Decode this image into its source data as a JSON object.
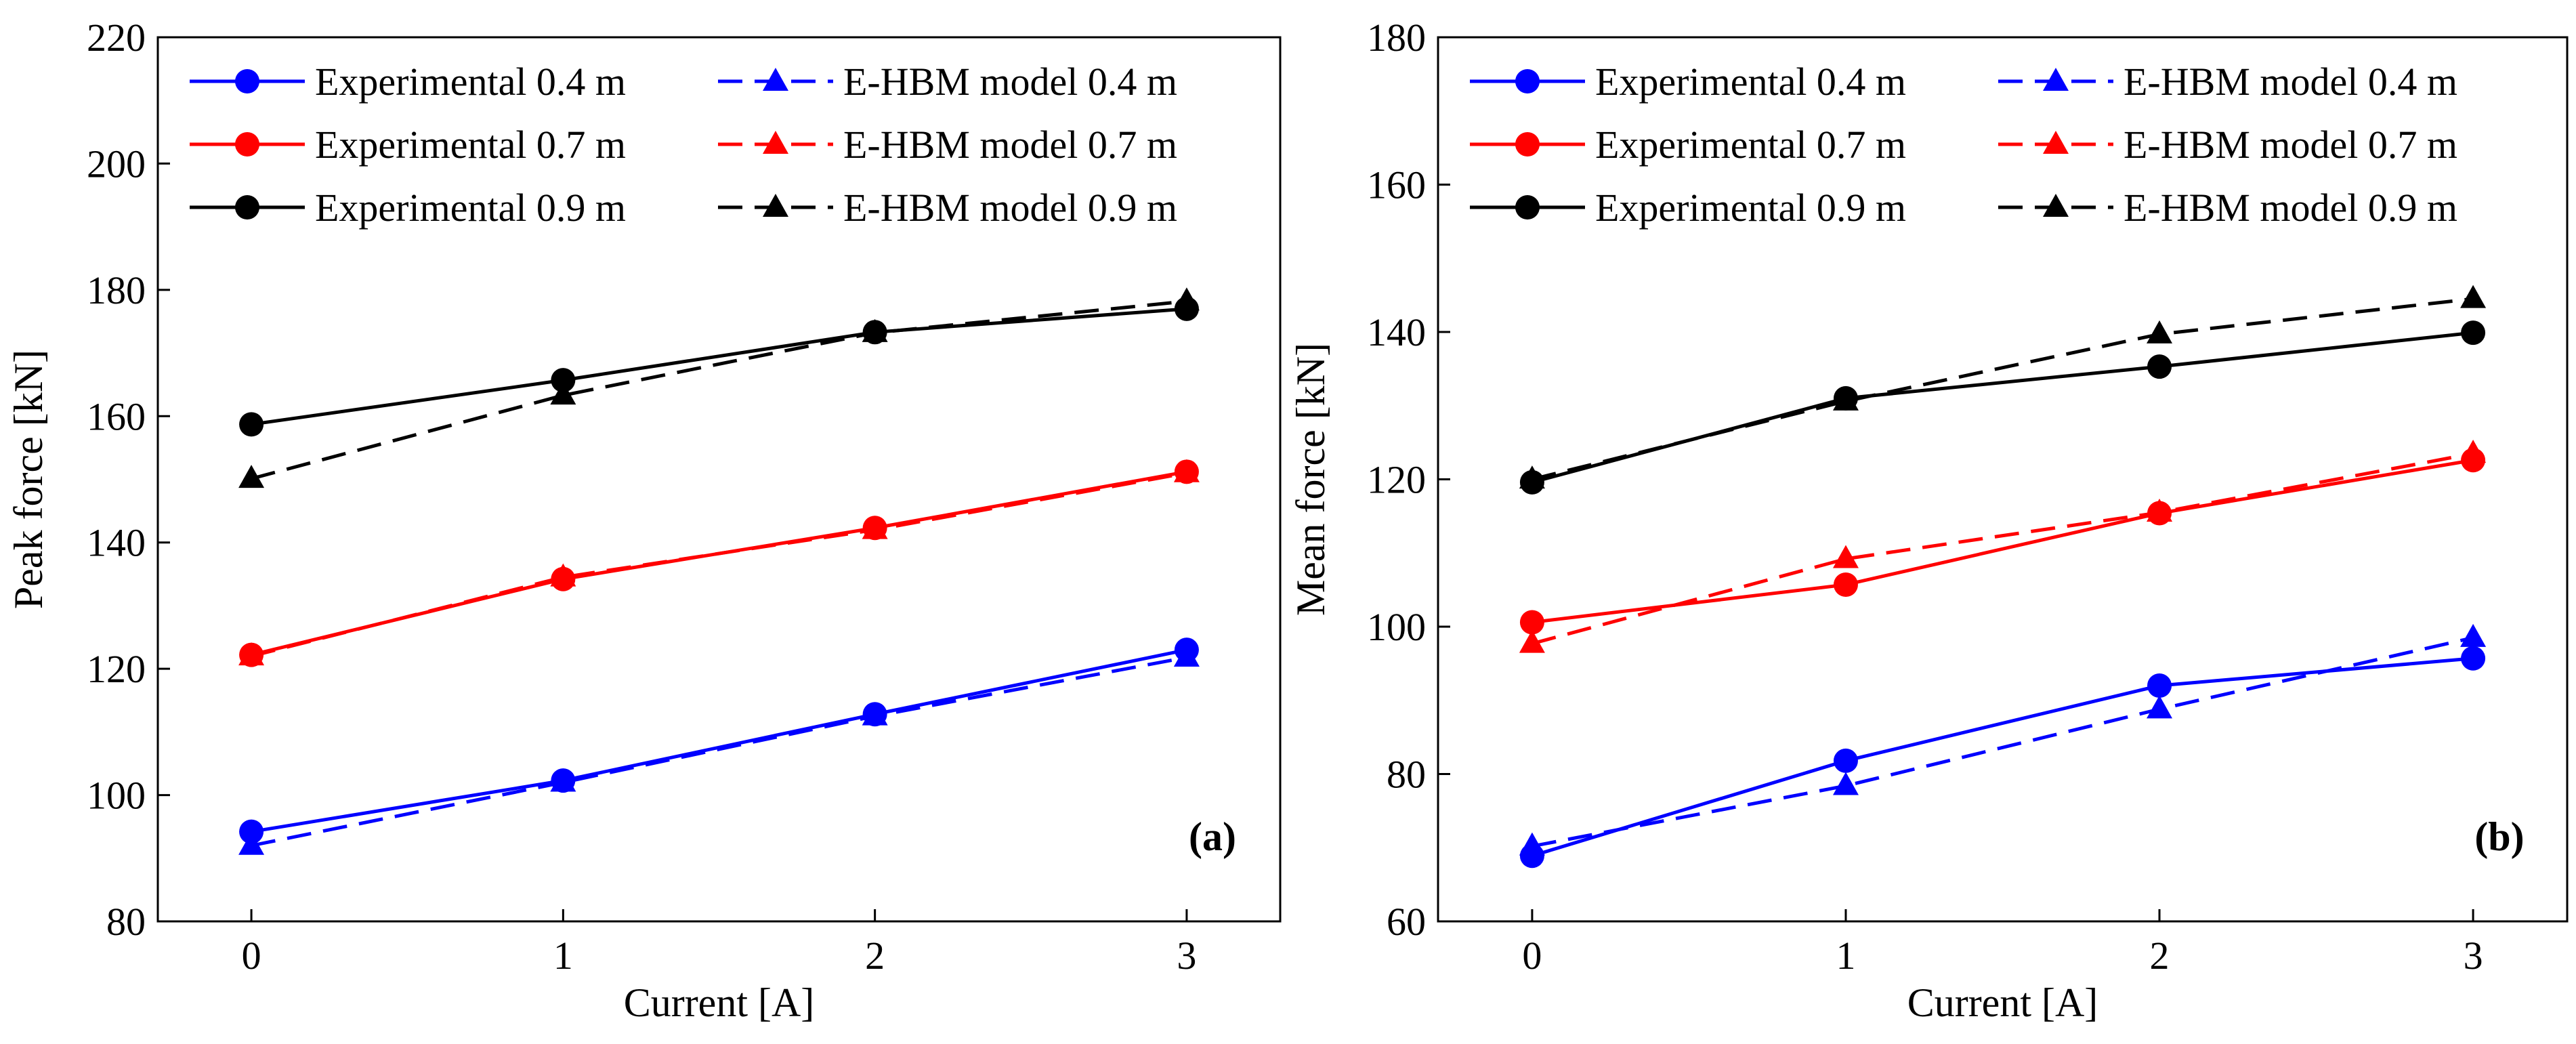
{
  "colors": {
    "blue": "#0000ff",
    "red": "#ff0000",
    "black": "#000000"
  },
  "chart_data": [
    {
      "type": "line",
      "panel_label": "(a)",
      "xlabel": "Current [A]",
      "ylabel": "Peak force [kN]",
      "x": [
        0,
        1,
        2,
        3
      ],
      "xticks": [
        0,
        1,
        2,
        3
      ],
      "xlim": [
        -0.3,
        3.3
      ],
      "ylim": [
        80,
        220
      ],
      "yticks": [
        80,
        100,
        120,
        140,
        160,
        180,
        200,
        220
      ],
      "grid": false,
      "legend_position": "top-left",
      "series": [
        {
          "name": "Experimental 0.4 m",
          "color": "blue",
          "line": "solid",
          "marker": "circle",
          "values": [
            94.2,
            102.3,
            112.8,
            123.0
          ]
        },
        {
          "name": "E-HBM model 0.4 m",
          "color": "blue",
          "line": "dashed",
          "marker": "triangle",
          "values": [
            92.0,
            102.0,
            112.5,
            121.8
          ]
        },
        {
          "name": "Experimental 0.7 m",
          "color": "red",
          "line": "solid",
          "marker": "circle",
          "values": [
            122.2,
            134.2,
            142.3,
            151.2
          ]
        },
        {
          "name": "E-HBM model 0.7 m",
          "color": "red",
          "line": "dashed",
          "marker": "triangle",
          "values": [
            122.0,
            134.5,
            142.0,
            151.0
          ]
        },
        {
          "name": "Experimental 0.9 m",
          "color": "black",
          "line": "solid",
          "marker": "circle",
          "values": [
            158.7,
            165.7,
            173.3,
            177.0
          ]
        },
        {
          "name": "E-HBM model 0.9 m",
          "color": "black",
          "line": "dashed",
          "marker": "triangle",
          "values": [
            150.1,
            163.3,
            173.2,
            178.2
          ]
        }
      ]
    },
    {
      "type": "line",
      "panel_label": "(b)",
      "xlabel": "Current [A]",
      "ylabel": "Mean force [kN]",
      "x": [
        0,
        1,
        2,
        3
      ],
      "xticks": [
        0,
        1,
        2,
        3
      ],
      "xlim": [
        -0.3,
        3.3
      ],
      "ylim": [
        60,
        180
      ],
      "yticks": [
        60,
        80,
        100,
        120,
        140,
        160,
        180
      ],
      "grid": false,
      "legend_position": "top-left",
      "series": [
        {
          "name": "Experimental 0.4 m",
          "color": "blue",
          "line": "solid",
          "marker": "circle",
          "values": [
            68.9,
            81.8,
            92.0,
            95.7
          ]
        },
        {
          "name": "E-HBM model 0.4 m",
          "color": "blue",
          "line": "dashed",
          "marker": "triangle",
          "values": [
            70.2,
            78.4,
            88.8,
            98.5
          ]
        },
        {
          "name": "Experimental 0.7 m",
          "color": "red",
          "line": "solid",
          "marker": "circle",
          "values": [
            100.6,
            105.7,
            115.4,
            122.6
          ]
        },
        {
          "name": "E-HBM model 0.7 m",
          "color": "red",
          "line": "dashed",
          "marker": "triangle",
          "values": [
            97.7,
            109.2,
            115.5,
            123.5
          ]
        },
        {
          "name": "Experimental 0.9 m",
          "color": "black",
          "line": "solid",
          "marker": "circle",
          "values": [
            119.6,
            131.0,
            135.3,
            139.9
          ]
        },
        {
          "name": "E-HBM model 0.9 m",
          "color": "black",
          "line": "dashed",
          "marker": "triangle",
          "values": [
            120.0,
            130.6,
            139.7,
            144.5
          ]
        }
      ]
    }
  ]
}
